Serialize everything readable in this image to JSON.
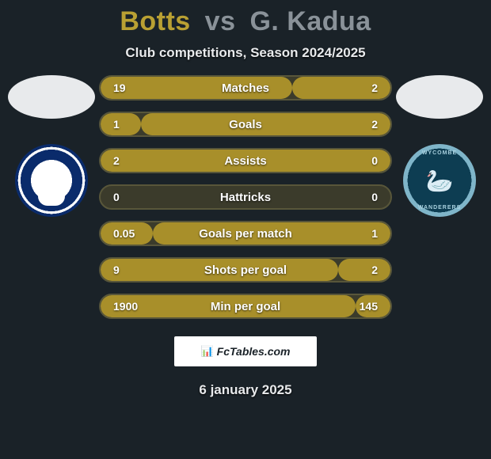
{
  "title": {
    "player1": "Botts",
    "vs": "vs",
    "player2": "G. Kadua"
  },
  "subtitle": "Club competitions, Season 2024/2025",
  "stats": [
    {
      "label": "Matches",
      "left_val": "19",
      "right_val": "2",
      "left_pct": 66,
      "right_pct": 34
    },
    {
      "label": "Goals",
      "left_val": "1",
      "right_val": "2",
      "left_pct": 14,
      "right_pct": 86
    },
    {
      "label": "Assists",
      "left_val": "2",
      "right_val": "0",
      "left_pct": 100,
      "right_pct": 0
    },
    {
      "label": "Hattricks",
      "left_val": "0",
      "right_val": "0",
      "left_pct": 0,
      "right_pct": 0
    },
    {
      "label": "Goals per match",
      "left_val": "0.05",
      "right_val": "1",
      "left_pct": 18,
      "right_pct": 82
    },
    {
      "label": "Shots per goal",
      "left_val": "9",
      "right_val": "2",
      "left_pct": 82,
      "right_pct": 18
    },
    {
      "label": "Min per goal",
      "left_val": "1900",
      "right_val": "145",
      "left_pct": 88,
      "right_pct": 12
    }
  ],
  "brand": "FcTables.com",
  "date": "6 january 2025",
  "colors": {
    "bar_fill": "#a88f2a",
    "bar_bg": "#3b3b2b",
    "bar_border": "#58563a",
    "background": "#1a2228",
    "title_p1": "#b9a033",
    "title_rest": "#8a9299"
  },
  "teams": {
    "left": {
      "name": "Portsmouth",
      "badge_colors": [
        "#0a2b6b",
        "#ffffff"
      ]
    },
    "right": {
      "name": "Wycombe Wanderers",
      "badge_colors": [
        "#0d3d52",
        "#7fb5c9"
      ]
    }
  }
}
